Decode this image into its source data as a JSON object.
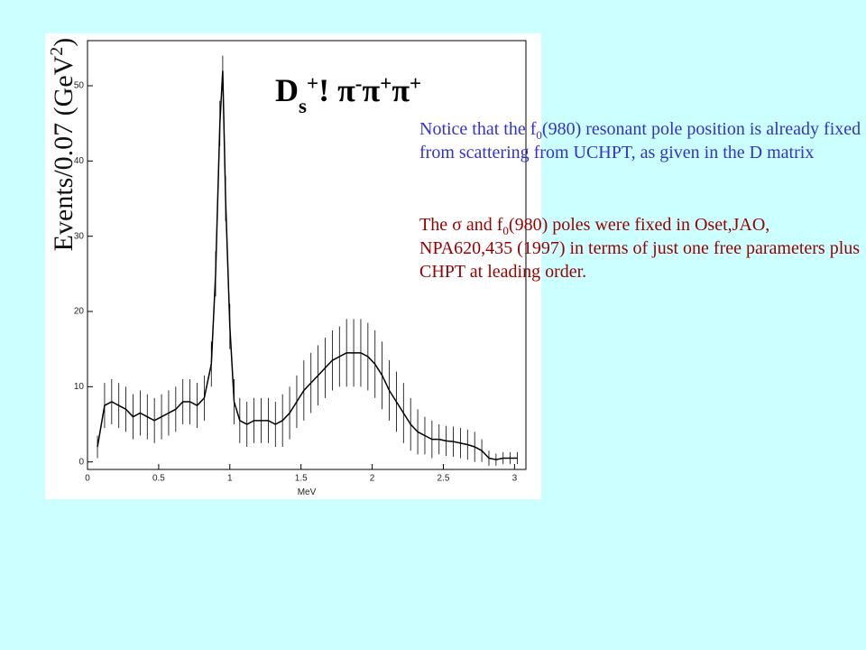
{
  "chart_data": {
    "type": "line",
    "title": [
      {
        "text": "D"
      },
      {
        "text": "s",
        "shift": "sub"
      },
      {
        "text": "+",
        "shift": "super"
      },
      {
        "text": "! "
      },
      {
        "text": "π"
      },
      {
        "text": "-",
        "shift": "super"
      },
      {
        "text": "π"
      },
      {
        "text": "+",
        "shift": "super"
      },
      {
        "text": "π"
      },
      {
        "text": "+",
        "shift": "super"
      }
    ],
    "y_label": [
      {
        "text": "Events/0.07 (GeV"
      },
      {
        "text": "2",
        "shift": "super"
      },
      {
        "text": ")"
      }
    ],
    "x_label": "MeV",
    "xlim": [
      0,
      3.08
    ],
    "ylim": [
      -1,
      56
    ],
    "xticks": [
      0,
      0.5,
      1,
      1.5,
      2,
      2.5,
      3
    ],
    "yticks": [
      0,
      10,
      20,
      30,
      40,
      50
    ],
    "color": "#000000",
    "x": [
      0.07,
      0.12,
      0.17,
      0.22,
      0.27,
      0.32,
      0.37,
      0.42,
      0.47,
      0.52,
      0.57,
      0.62,
      0.67,
      0.72,
      0.77,
      0.82,
      0.87,
      0.9,
      0.93,
      0.95,
      0.97,
      1.0,
      1.03,
      1.07,
      1.12,
      1.17,
      1.22,
      1.27,
      1.32,
      1.37,
      1.42,
      1.47,
      1.52,
      1.57,
      1.62,
      1.67,
      1.72,
      1.77,
      1.82,
      1.87,
      1.92,
      1.97,
      2.02,
      2.07,
      2.12,
      2.17,
      2.22,
      2.27,
      2.32,
      2.37,
      2.42,
      2.47,
      2.52,
      2.57,
      2.62,
      2.67,
      2.72,
      2.77,
      2.82,
      2.87,
      2.92,
      2.97,
      3.02
    ],
    "values": [
      2,
      7.5,
      8,
      7.5,
      7,
      6,
      6.5,
      6,
      5.5,
      6,
      6.5,
      7,
      8,
      8,
      7.5,
      8.5,
      13,
      25,
      45,
      52,
      35,
      18,
      8,
      5.5,
      5,
      5.5,
      5.5,
      5.5,
      5,
      5.5,
      6.5,
      8,
      9.5,
      10.5,
      11.5,
      12.5,
      13.5,
      14,
      14.5,
      14.5,
      14.5,
      14,
      13,
      11.5,
      9.5,
      8,
      6.5,
      5,
      4,
      3.5,
      3,
      3,
      2.8,
      2.7,
      2.5,
      2.3,
      2,
      1.5,
      0.5,
      0.3,
      0.5,
      0.5,
      0.5
    ],
    "errors": [
      1.5,
      3,
      3,
      3,
      3,
      3,
      3,
      3,
      3,
      3,
      3,
      3,
      3,
      3,
      3,
      3,
      3,
      3,
      3,
      2,
      3,
      3,
      3,
      3,
      3,
      3,
      3,
      3,
      3,
      3.5,
      3.5,
      3.5,
      4,
      4,
      4,
      4,
      4,
      4,
      4.5,
      4.5,
      4.5,
      4.5,
      4.5,
      4.5,
      4,
      4,
      4,
      3.5,
      3,
      2.5,
      2.5,
      2,
      2,
      2,
      2,
      2,
      2,
      1.5,
      1,
      0.8,
      0.8,
      0.8,
      0.8
    ],
    "notes": [
      {
        "color": "#3333cc",
        "segments": [
          {
            "text": "Notice that the f"
          },
          {
            "text": "0",
            "shift": "sub"
          },
          {
            "text": "(980) resonant pole position is already fixed from scattering from UCHPT, as given in the D matrix"
          }
        ]
      },
      {
        "color": "#990000",
        "segments": [
          {
            "text": "The σ and f"
          },
          {
            "text": "0",
            "shift": "sub"
          },
          {
            "text": "(980) poles were fixed in Oset,JAO, NPA620,435 (1997) in terms of just one free parameters plus CHPT at leading order."
          }
        ]
      }
    ]
  }
}
